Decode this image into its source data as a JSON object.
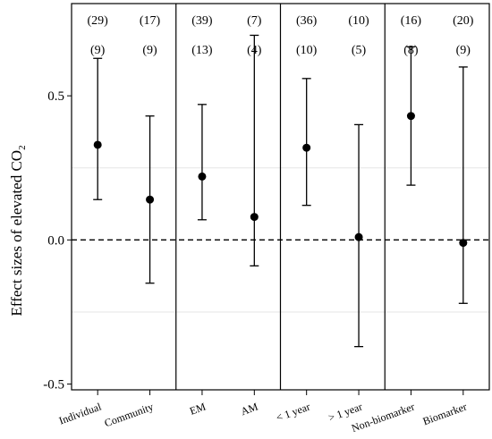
{
  "chart_data": {
    "type": "scatter",
    "style": "point estimates with 95% confidence intervals",
    "ylabel": "Effect sizes of elevated CO",
    "ylabel_subscript": "2",
    "ylim": [
      -0.52,
      0.82
    ],
    "yticks": [
      {
        "value": 0.5,
        "label": "0.5"
      },
      {
        "value": 0.0,
        "label": "0.0"
      },
      {
        "value": -0.5,
        "label": "-0.5"
      }
    ],
    "minor_gridlines": [
      0.25,
      -0.25
    ],
    "reference_line": {
      "value": 0.0,
      "style": "dashed"
    },
    "panel_separators_after": [
      2,
      4,
      6
    ],
    "categories": [
      "Individual",
      "Community",
      "EM",
      "AM",
      "< 1 year",
      "> 1 year",
      "Non-biomarker",
      "Biomarker"
    ],
    "series": [
      {
        "estimate": [
          0.33,
          0.14,
          0.22,
          0.08,
          0.32,
          0.01,
          0.43,
          -0.01
        ],
        "ci_lower": [
          0.14,
          -0.15,
          0.07,
          -0.09,
          0.12,
          -0.37,
          0.19,
          -0.22
        ],
        "ci_upper": [
          0.63,
          0.43,
          0.47,
          0.71,
          0.56,
          0.4,
          0.67,
          0.6
        ]
      }
    ],
    "annotations_row1": [
      "(29)",
      "(17)",
      "(39)",
      "(7)",
      "(36)",
      "(10)",
      "(16)",
      "(20)"
    ],
    "annotations_row2": [
      "(9)",
      "(9)",
      "(13)",
      "(4)",
      "(10)",
      "(5)",
      "(8)",
      "(9)"
    ],
    "colors": {
      "points": "#000000",
      "gridlines": "#e6e6e6",
      "axis": "#000000"
    }
  }
}
